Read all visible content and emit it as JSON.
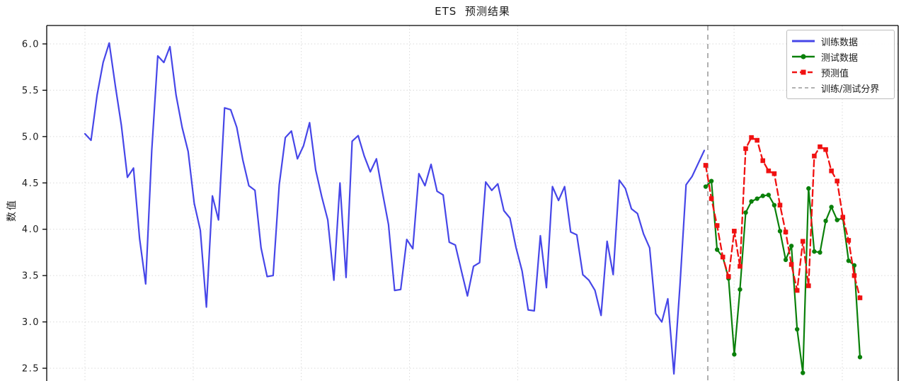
{
  "figure": {
    "title": "ETS  预测结果",
    "y_axis_label": "数值"
  },
  "legend": {
    "position": "upper right",
    "items": [
      {
        "label": "训练数据"
      },
      {
        "label": "测试数据"
      },
      {
        "label": "预测值"
      },
      {
        "label": "训练/测试分界"
      }
    ]
  },
  "chart_data": {
    "type": "line",
    "title": "ETS  预测结果",
    "xlabel": "",
    "ylabel": "数值",
    "x_axis_visible": false,
    "grid": "dotted, both axes, light gray",
    "legend_position": "upper right",
    "yticks": [
      6.0,
      5.5,
      5.0,
      4.5,
      4.0,
      3.5,
      3.0,
      2.5
    ],
    "ytick_labels": [
      "6.0",
      "5.5",
      "5.0",
      "4.5",
      "4.0",
      "3.5",
      "3.0",
      "2.5"
    ],
    "ylim_visible": [
      2.36,
      6.2
    ],
    "n_train": 103,
    "n_test": 28,
    "split_line": {
      "label": "训练/测试分界",
      "color": "#a8a8a8",
      "after_series": "train"
    },
    "series": [
      {
        "name": "训练数据",
        "color": "#4646e8",
        "style": "solid",
        "marker": "none",
        "values": [
          5.03,
          4.96,
          5.45,
          5.8,
          6.01,
          5.55,
          5.12,
          4.56,
          4.66,
          3.9,
          3.41,
          4.85,
          5.87,
          5.8,
          5.97,
          5.45,
          5.1,
          4.84,
          4.28,
          3.99,
          3.16,
          4.36,
          4.1,
          5.31,
          5.29,
          5.1,
          4.75,
          4.47,
          4.42,
          3.8,
          3.49,
          3.5,
          4.48,
          4.99,
          5.06,
          4.76,
          4.9,
          5.15,
          4.64,
          4.35,
          4.1,
          3.45,
          4.5,
          3.48,
          4.95,
          5.01,
          4.79,
          4.62,
          4.76,
          4.4,
          4.05,
          3.34,
          3.35,
          3.89,
          3.79,
          4.6,
          4.47,
          4.7,
          4.41,
          4.37,
          3.86,
          3.83,
          3.55,
          3.28,
          3.6,
          3.64,
          4.51,
          4.42,
          4.49,
          4.2,
          4.12,
          3.8,
          3.55,
          3.13,
          3.12,
          3.93,
          3.37,
          4.46,
          4.31,
          4.46,
          3.97,
          3.94,
          3.51,
          3.45,
          3.34,
          3.07,
          3.87,
          3.51,
          4.53,
          4.44,
          4.22,
          4.17,
          3.95,
          3.8,
          3.09,
          3.0,
          3.25,
          2.44,
          3.4,
          4.48,
          4.57,
          4.71,
          4.85
        ]
      },
      {
        "name": "测试数据",
        "color": "#0a800a",
        "style": "solid",
        "marker": "circle",
        "values": [
          4.46,
          4.52,
          3.78,
          3.7,
          3.47,
          2.65,
          3.35,
          4.18,
          4.3,
          4.33,
          4.36,
          4.37,
          4.26,
          3.98,
          3.67,
          3.82,
          2.92,
          2.45,
          4.44,
          3.76,
          3.75,
          4.09,
          4.24,
          4.1,
          4.12,
          3.66,
          3.61,
          2.62
        ]
      },
      {
        "name": "预测值",
        "color": "#f01111",
        "style": "dashed",
        "marker": "square",
        "values": [
          4.69,
          4.33,
          4.04,
          3.7,
          3.49,
          3.98,
          3.6,
          4.87,
          4.99,
          4.96,
          4.74,
          4.63,
          4.6,
          4.26,
          3.97,
          3.62,
          3.34,
          3.87,
          3.39,
          4.79,
          4.89,
          4.86,
          4.63,
          4.52,
          4.13,
          3.88,
          3.5,
          3.26
        ]
      }
    ]
  }
}
